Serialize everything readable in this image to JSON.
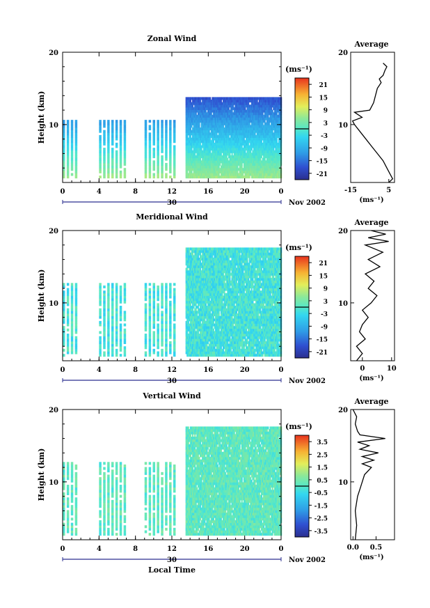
{
  "figure": {
    "month_label": "Nov 2002",
    "date_label": "30",
    "xlabel_bottom": "Local Time"
  },
  "chart_data": [
    {
      "id": "zonal",
      "type": "heatmap",
      "title": "Zonal Wind",
      "ylabel": "Height (km)",
      "yticks": [
        "20",
        "10"
      ],
      "xticks": [
        "0",
        "4",
        "8",
        "12",
        "16",
        "20",
        "0"
      ],
      "xlim": [
        0,
        24
      ],
      "ylim": [
        2,
        20
      ],
      "grid": false,
      "colorbar": {
        "unit": "(ms⁻¹)",
        "ticks": [
          "21",
          "15",
          "9",
          "3",
          "-3",
          "-9",
          "-15",
          "-21"
        ],
        "range": [
          -24,
          24
        ]
      },
      "sampled_periods_hours": [
        [
          0,
          1.5
        ],
        [
          4,
          7
        ],
        [
          9,
          12.5
        ],
        [
          13.5,
          24
        ]
      ],
      "profile": {
        "title": "Average",
        "xlabel": "(ms⁻¹)",
        "xticks": [
          "-15",
          "5"
        ],
        "xlim": [
          -15,
          8
        ],
        "yticks": [
          "20",
          "10"
        ],
        "points": [
          [
            5,
            2
          ],
          [
            7,
            2.5
          ],
          [
            6,
            3
          ],
          [
            4,
            4
          ],
          [
            2,
            5
          ],
          [
            -1,
            6
          ],
          [
            -4,
            7
          ],
          [
            -7,
            8
          ],
          [
            -10,
            9
          ],
          [
            -13,
            10
          ],
          [
            -14,
            10.5
          ],
          [
            -9,
            11
          ],
          [
            -13,
            11.7
          ],
          [
            -5,
            12
          ],
          [
            -3,
            13
          ],
          [
            -2,
            14
          ],
          [
            -1,
            15
          ],
          [
            1,
            15.8
          ],
          [
            0,
            16.3
          ],
          [
            2,
            16.8
          ],
          [
            3,
            17.5
          ],
          [
            4,
            18
          ],
          [
            2,
            18.5
          ]
        ]
      }
    },
    {
      "id": "meridional",
      "type": "heatmap",
      "title": "Meridional Wind",
      "ylabel": "Height (km)",
      "yticks": [
        "20",
        "10"
      ],
      "xticks": [
        "0",
        "4",
        "8",
        "12",
        "16",
        "20",
        "0"
      ],
      "xlim": [
        0,
        24
      ],
      "ylim": [
        2,
        20
      ],
      "grid": false,
      "colorbar": {
        "unit": "(ms⁻¹)",
        "ticks": [
          "21",
          "15",
          "9",
          "3",
          "-3",
          "-9",
          "-15",
          "-21"
        ],
        "range": [
          -24,
          24
        ]
      },
      "sampled_periods_hours": [
        [
          0,
          1.5
        ],
        [
          4,
          7
        ],
        [
          9,
          12.5
        ],
        [
          13.5,
          24
        ]
      ],
      "profile": {
        "title": "Average",
        "xlabel": "(ms⁻¹)",
        "xticks": [
          "0",
          "10"
        ],
        "xlim": [
          -4,
          11
        ],
        "yticks": [
          "20",
          "10"
        ],
        "points": [
          [
            -2,
            2
          ],
          [
            0,
            3
          ],
          [
            -2,
            4
          ],
          [
            1,
            5
          ],
          [
            -1,
            6
          ],
          [
            0,
            7
          ],
          [
            2,
            8
          ],
          [
            0,
            9
          ],
          [
            3,
            10
          ],
          [
            5,
            11
          ],
          [
            2,
            12
          ],
          [
            4,
            13
          ],
          [
            1,
            14
          ],
          [
            6,
            15
          ],
          [
            2,
            16
          ],
          [
            7,
            17
          ],
          [
            1,
            18
          ],
          [
            9,
            18.5
          ],
          [
            2,
            19
          ],
          [
            8,
            19.5
          ],
          [
            3,
            20
          ]
        ]
      }
    },
    {
      "id": "vertical",
      "type": "heatmap",
      "title": "Vertical Wind",
      "ylabel": "Height (km)",
      "yticks": [
        "20",
        "10"
      ],
      "xticks": [
        "0",
        "4",
        "8",
        "12",
        "16",
        "20",
        "0"
      ],
      "xlim": [
        0,
        24
      ],
      "ylim": [
        2,
        20
      ],
      "grid": false,
      "colorbar": {
        "unit": "(ms⁻¹)",
        "ticks": [
          "3.5",
          "2.5",
          "1.5",
          "0.5",
          "-0.5",
          "-1.5",
          "-2.5",
          "-3.5"
        ],
        "range": [
          -4,
          4
        ]
      },
      "sampled_periods_hours": [
        [
          0,
          1.5
        ],
        [
          4,
          7
        ],
        [
          9,
          12.5
        ],
        [
          13.5,
          24
        ]
      ],
      "profile": {
        "title": "Average",
        "xlabel": "(ms⁻¹)",
        "xticks": [
          "0.0",
          "0.5"
        ],
        "xlim": [
          -0.05,
          0.9
        ],
        "yticks": [
          "20",
          "10"
        ],
        "points": [
          [
            0.05,
            2
          ],
          [
            0.08,
            4
          ],
          [
            0.05,
            6
          ],
          [
            0.1,
            8
          ],
          [
            0.15,
            9
          ],
          [
            0.2,
            10
          ],
          [
            0.25,
            11
          ],
          [
            0.4,
            12
          ],
          [
            0.2,
            12.5
          ],
          [
            0.45,
            13
          ],
          [
            0.2,
            13.5
          ],
          [
            0.55,
            14
          ],
          [
            0.15,
            14.5
          ],
          [
            0.35,
            15
          ],
          [
            0.1,
            15.5
          ],
          [
            0.7,
            16
          ],
          [
            0.15,
            16.5
          ],
          [
            0.1,
            17
          ],
          [
            0.05,
            18
          ],
          [
            0.08,
            19
          ],
          [
            0.0,
            20
          ]
        ]
      }
    }
  ]
}
